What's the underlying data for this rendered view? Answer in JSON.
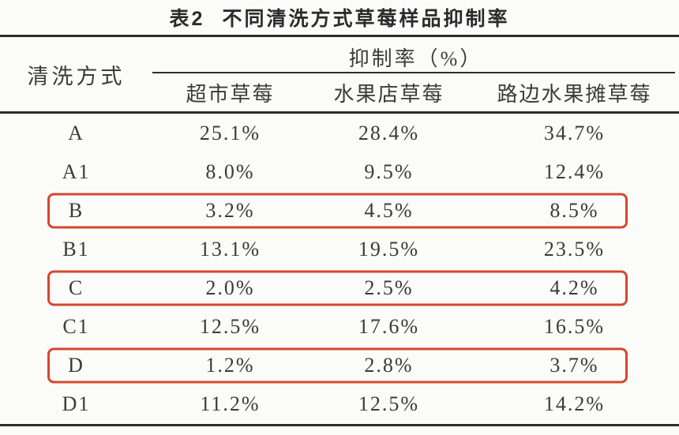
{
  "title": {
    "index": "表2",
    "text": "不同清洗方式草莓样品抑制率"
  },
  "table": {
    "row_header": "清洗方式",
    "group_header": "抑制率（%）",
    "columns": [
      "超市草莓",
      "水果店草莓",
      "路边水果摊草莓"
    ],
    "rows": [
      {
        "label": "A",
        "values": [
          "25.1%",
          "28.4%",
          "34.7%"
        ],
        "highlighted": false
      },
      {
        "label": "A1",
        "values": [
          "8.0%",
          "9.5%",
          "12.4%"
        ],
        "highlighted": false
      },
      {
        "label": "B",
        "values": [
          "3.2%",
          "4.5%",
          "8.5%"
        ],
        "highlighted": true
      },
      {
        "label": "B1",
        "values": [
          "13.1%",
          "19.5%",
          "23.5%"
        ],
        "highlighted": false
      },
      {
        "label": "C",
        "values": [
          "2.0%",
          "2.5%",
          "4.2%"
        ],
        "highlighted": true
      },
      {
        "label": "C1",
        "values": [
          "12.5%",
          "17.6%",
          "16.5%"
        ],
        "highlighted": false
      },
      {
        "label": "D",
        "values": [
          "1.2%",
          "2.8%",
          "3.7%"
        ],
        "highlighted": true
      },
      {
        "label": "D1",
        "values": [
          "11.2%",
          "12.5%",
          "14.2%"
        ],
        "highlighted": false
      }
    ],
    "colors": {
      "highlight_border": "#d4472e",
      "rule": "#2d2d2d",
      "text": "#3b3b3b",
      "background": "#fbfbfa"
    }
  }
}
